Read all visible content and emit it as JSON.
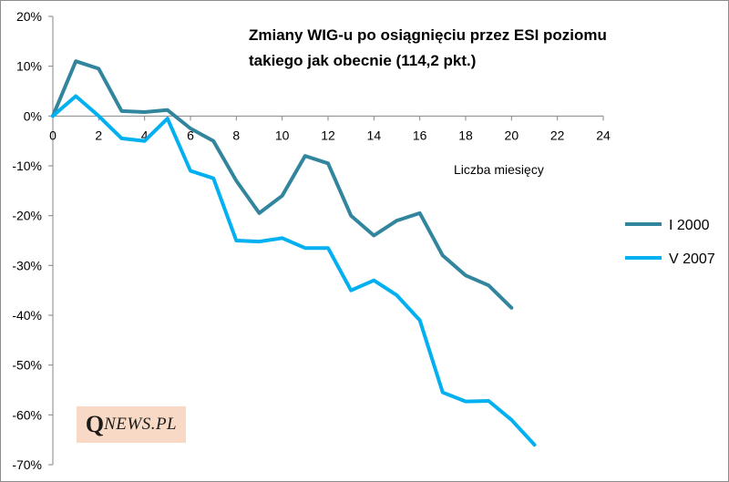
{
  "chart_data": {
    "type": "line",
    "title_lines": [
      "Zmiany WIG-u po osiągnięciu przez ESI poziomu",
      "takiego jak obecnie (114,2 pkt.)"
    ],
    "xlabel": "Liczba miesięcy",
    "ylabel": "",
    "xlim": [
      0,
      24
    ],
    "ylim": [
      -70,
      20
    ],
    "x_ticks": [
      0,
      2,
      4,
      6,
      8,
      10,
      12,
      14,
      16,
      18,
      20,
      22,
      24
    ],
    "y_ticks": [
      20,
      10,
      0,
      -10,
      -20,
      -30,
      -40,
      -50,
      -60,
      -70
    ],
    "y_tick_labels": [
      "20%",
      "10%",
      "0%",
      "-10%",
      "-20%",
      "-30%",
      "-40%",
      "-50%",
      "-60%",
      "-70%"
    ],
    "x_tick_labels": [
      "0",
      "2",
      "4",
      "6",
      "8",
      "10",
      "12",
      "14",
      "16",
      "18",
      "20",
      "22",
      "24"
    ],
    "legend_position": "right",
    "series": [
      {
        "name": "I 2000",
        "color": "#31859c",
        "x": [
          0,
          1,
          2,
          3,
          4,
          5,
          6,
          7,
          8,
          9,
          10,
          11,
          12,
          13,
          14,
          15,
          16,
          17,
          18,
          19,
          20
        ],
        "values": [
          0,
          11,
          9.5,
          1,
          0.8,
          1.2,
          -2.5,
          -5,
          -13,
          -19.5,
          -16,
          -8,
          -9.5,
          -20,
          -24,
          -21,
          -19.5,
          -28,
          -32,
          -34,
          -38.5
        ]
      },
      {
        "name": "V 2007",
        "color": "#00b0f0",
        "x": [
          0,
          1,
          2,
          3,
          4,
          5,
          6,
          7,
          8,
          9,
          10,
          11,
          12,
          13,
          14,
          15,
          16,
          17,
          18,
          19,
          20,
          21
        ],
        "values": [
          0,
          4,
          0,
          -4.5,
          -5,
          -0.5,
          -11,
          -12.5,
          -25,
          -25.2,
          -24.5,
          -26.5,
          -26.5,
          -35,
          -33,
          -36,
          -41,
          -55.5,
          -57.3,
          -57.2,
          -61,
          -66
        ]
      }
    ]
  },
  "logo": {
    "q": "Q",
    "rest": "NEWS.PL"
  }
}
